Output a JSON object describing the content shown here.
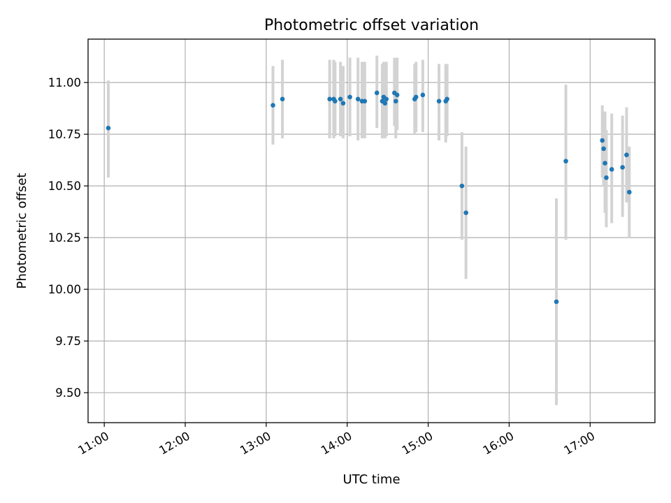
{
  "chart_data": {
    "type": "scatter",
    "title": "Photometric offset variation",
    "xlabel": "UTC time",
    "ylabel": "Photometric offset",
    "xlim": [
      "10:48",
      "17:48"
    ],
    "ylim": [
      9.355,
      11.21
    ],
    "x_ticks": [
      "11:00",
      "12:00",
      "13:00",
      "14:00",
      "15:00",
      "16:00",
      "17:00"
    ],
    "y_ticks": [
      "9.50",
      "9.75",
      "10.00",
      "10.25",
      "10.50",
      "10.75",
      "11.00"
    ],
    "grid": true,
    "colors": {
      "point": "#1f77b4",
      "errorbar": "#d3d3d3",
      "grid": "#b0b0b0"
    },
    "points": [
      {
        "x": "11:03",
        "y": 10.78,
        "low": 10.54,
        "high": 11.01
      },
      {
        "x": "13:05",
        "y": 10.89,
        "low": 10.7,
        "high": 11.08
      },
      {
        "x": "13:12",
        "y": 10.92,
        "low": 10.73,
        "high": 11.11
      },
      {
        "x": "13:47",
        "y": 10.92,
        "low": 10.73,
        "high": 11.11
      },
      {
        "x": "13:50",
        "y": 10.92,
        "low": 10.73,
        "high": 11.11
      },
      {
        "x": "13:51",
        "y": 10.91,
        "low": 10.74,
        "high": 11.1
      },
      {
        "x": "13:55",
        "y": 10.92,
        "low": 10.74,
        "high": 11.1
      },
      {
        "x": "13:57",
        "y": 10.9,
        "low": 10.73,
        "high": 11.08
      },
      {
        "x": "14:02",
        "y": 10.93,
        "low": 10.74,
        "high": 11.12
      },
      {
        "x": "14:08",
        "y": 10.92,
        "low": 10.72,
        "high": 11.12
      },
      {
        "x": "14:11",
        "y": 10.91,
        "low": 10.73,
        "high": 11.1
      },
      {
        "x": "14:13",
        "y": 10.91,
        "low": 10.73,
        "high": 11.1
      },
      {
        "x": "14:22",
        "y": 10.95,
        "low": 10.78,
        "high": 11.13
      },
      {
        "x": "14:26",
        "y": 10.91,
        "low": 10.73,
        "high": 11.09
      },
      {
        "x": "14:27",
        "y": 10.93,
        "low": 10.75,
        "high": 11.1
      },
      {
        "x": "14:28",
        "y": 10.9,
        "low": 10.73,
        "high": 11.08
      },
      {
        "x": "14:29",
        "y": 10.92,
        "low": 10.74,
        "high": 11.1
      },
      {
        "x": "14:35",
        "y": 10.95,
        "low": 10.79,
        "high": 11.12
      },
      {
        "x": "14:36",
        "y": 10.91,
        "low": 10.73,
        "high": 11.12
      },
      {
        "x": "14:37",
        "y": 10.94,
        "low": 10.77,
        "high": 11.12
      },
      {
        "x": "14:50",
        "y": 10.92,
        "low": 10.75,
        "high": 11.09
      },
      {
        "x": "14:51",
        "y": 10.93,
        "low": 10.76,
        "high": 11.1
      },
      {
        "x": "14:56",
        "y": 10.94,
        "low": 10.76,
        "high": 11.11
      },
      {
        "x": "15:08",
        "y": 10.91,
        "low": 10.72,
        "high": 11.09
      },
      {
        "x": "15:13",
        "y": 10.91,
        "low": 10.71,
        "high": 11.09
      },
      {
        "x": "15:14",
        "y": 10.92,
        "low": 10.74,
        "high": 11.09
      },
      {
        "x": "15:25",
        "y": 10.5,
        "low": 10.24,
        "high": 10.76
      },
      {
        "x": "15:28",
        "y": 10.37,
        "low": 10.05,
        "high": 10.69
      },
      {
        "x": "16:35",
        "y": 9.94,
        "low": 9.44,
        "high": 10.44
      },
      {
        "x": "16:42",
        "y": 10.62,
        "low": 10.24,
        "high": 10.99
      },
      {
        "x": "17:09",
        "y": 10.72,
        "low": 10.54,
        "high": 10.89
      },
      {
        "x": "17:10",
        "y": 10.68,
        "low": 10.5,
        "high": 10.86
      },
      {
        "x": "17:11",
        "y": 10.61,
        "low": 10.37,
        "high": 10.86
      },
      {
        "x": "17:12",
        "y": 10.54,
        "low": 10.3,
        "high": 10.77
      },
      {
        "x": "17:16",
        "y": 10.58,
        "low": 10.32,
        "high": 10.85
      },
      {
        "x": "17:24",
        "y": 10.59,
        "low": 10.35,
        "high": 10.84
      },
      {
        "x": "17:27",
        "y": 10.65,
        "low": 10.42,
        "high": 10.88
      },
      {
        "x": "17:29",
        "y": 10.47,
        "low": 10.25,
        "high": 10.69
      }
    ]
  }
}
